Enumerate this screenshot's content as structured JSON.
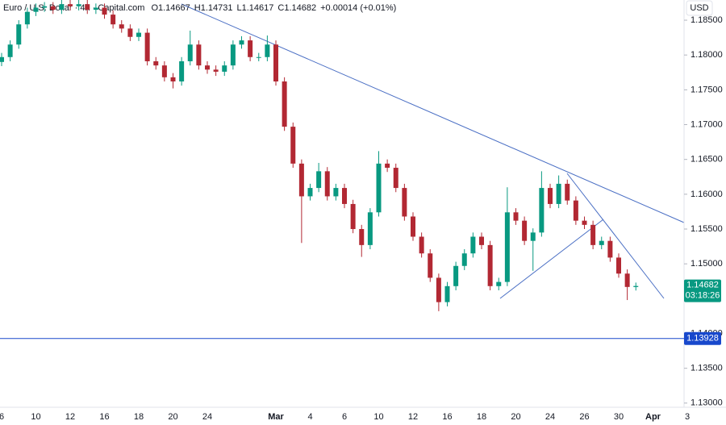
{
  "chart_data": {
    "type": "candlestick",
    "symbol": "Euro / U.S. Dollar · 4h · Capital.com",
    "readout": [
      "O1.14667",
      "H1.14731",
      "L1.14617",
      "C1.14682",
      "+0.00014 (+0.01%)"
    ],
    "currency": "USD",
    "categories": [
      "6",
      null,
      null,
      null,
      "10",
      null,
      null,
      null,
      "12",
      null,
      null,
      null,
      "16",
      null,
      null,
      null,
      "18",
      null,
      null,
      null,
      "20",
      null,
      null,
      null,
      "24",
      null,
      null,
      null,
      null,
      null,
      null,
      null,
      "Mar",
      null,
      null,
      null,
      "4",
      null,
      null,
      null,
      "6",
      null,
      null,
      null,
      "10",
      null,
      null,
      null,
      "12",
      null,
      null,
      null,
      "16",
      null,
      null,
      null,
      "18",
      null,
      null,
      null,
      "20",
      null,
      null,
      null,
      "24",
      null,
      null,
      null,
      "26",
      null,
      null,
      null,
      "30",
      null,
      null,
      null,
      "Apr",
      null,
      null,
      null,
      "3"
    ],
    "open": [
      1.179,
      1.1797,
      1.1815,
      1.1844,
      1.1862,
      1.1868,
      1.187,
      1.1865,
      1.1873,
      1.187,
      1.1873,
      1.1865,
      1.1868,
      1.1858,
      1.1844,
      1.1838,
      1.1826,
      1.1832,
      1.1791,
      1.1785,
      1.1768,
      1.1762,
      1.1791,
      1.1815,
      1.1785,
      1.1779,
      1.1776,
      1.1785,
      1.1815,
      1.1821,
      1.1797,
      1.1797,
      1.1815,
      1.1762,
      1.1697,
      1.1644,
      1.1597,
      1.1609,
      1.1633,
      1.1597,
      1.1609,
      1.1586,
      1.155,
      1.1527,
      1.1574,
      1.1644,
      1.1638,
      1.1609,
      1.1568,
      1.1539,
      1.1515,
      1.148,
      1.1445,
      1.1468,
      1.1497,
      1.1515,
      1.1539,
      1.1527,
      1.1468,
      1.1474,
      1.1574,
      1.1562,
      1.1533,
      1.1545,
      1.1609,
      1.1586,
      1.1615,
      1.1591,
      1.1562,
      1.1556,
      1.1527,
      1.1533,
      1.1509,
      1.1486,
      1.14667,
      null,
      null,
      null,
      null,
      null,
      null
    ],
    "high": [
      1.1803,
      1.1821,
      1.185,
      1.1868,
      1.1874,
      1.1876,
      1.1876,
      1.1879,
      1.1879,
      1.1879,
      1.1879,
      1.1874,
      1.1874,
      1.1864,
      1.185,
      1.1844,
      1.1838,
      1.1838,
      1.1797,
      1.1791,
      1.1774,
      1.1797,
      1.1835,
      1.1821,
      1.1791,
      1.1785,
      1.1791,
      1.1821,
      1.1827,
      1.1827,
      1.1803,
      1.1828,
      1.1821,
      1.1768,
      1.1703,
      1.165,
      1.1615,
      1.1645,
      1.1639,
      1.1615,
      1.1615,
      1.1592,
      1.1556,
      1.158,
      1.1662,
      1.165,
      1.1644,
      1.1615,
      1.1574,
      1.1545,
      1.1521,
      1.1486,
      1.1474,
      1.1503,
      1.1521,
      1.1545,
      1.1545,
      1.1533,
      1.148,
      1.161,
      1.158,
      1.1568,
      1.1551,
      1.1633,
      1.1615,
      1.1627,
      1.1621,
      1.1597,
      1.1568,
      1.1562,
      1.1539,
      1.1539,
      1.1515,
      1.1492,
      1.14731,
      null,
      null,
      null,
      null,
      null,
      null
    ],
    "low": [
      1.1784,
      1.1791,
      1.1809,
      1.1838,
      1.1856,
      1.1862,
      1.1859,
      1.1859,
      1.1864,
      1.1864,
      1.1859,
      1.1859,
      1.1852,
      1.1838,
      1.1832,
      1.182,
      1.182,
      1.1785,
      1.1779,
      1.1762,
      1.1752,
      1.1756,
      1.1785,
      1.1779,
      1.1773,
      1.177,
      1.177,
      1.1779,
      1.1809,
      1.1791,
      1.1791,
      1.1791,
      1.1756,
      1.1691,
      1.1638,
      1.153,
      1.1591,
      1.1603,
      1.1591,
      1.1591,
      1.158,
      1.1544,
      1.151,
      1.1521,
      1.1568,
      1.1632,
      1.1603,
      1.1562,
      1.1533,
      1.1509,
      1.1474,
      1.1432,
      1.1439,
      1.1462,
      1.1491,
      1.1509,
      1.1521,
      1.1462,
      1.1462,
      1.1468,
      1.1556,
      1.1527,
      1.149,
      1.1539,
      1.158,
      1.158,
      1.1585,
      1.1556,
      1.155,
      1.1521,
      1.1521,
      1.1503,
      1.148,
      1.1448,
      1.14617,
      null,
      null,
      null,
      null,
      null,
      null
    ],
    "close": [
      1.1797,
      1.1815,
      1.1844,
      1.1862,
      1.1868,
      1.187,
      1.1865,
      1.1873,
      1.187,
      1.1873,
      1.1865,
      1.1868,
      1.1858,
      1.1844,
      1.1838,
      1.1826,
      1.1832,
      1.1791,
      1.1785,
      1.1768,
      1.1762,
      1.1791,
      1.1815,
      1.1785,
      1.1779,
      1.1776,
      1.1785,
      1.1815,
      1.1821,
      1.1797,
      1.1797,
      1.1815,
      1.1762,
      1.1697,
      1.1644,
      1.1597,
      1.1609,
      1.1633,
      1.1597,
      1.1609,
      1.1586,
      1.155,
      1.1527,
      1.1574,
      1.1644,
      1.1638,
      1.1609,
      1.1568,
      1.1539,
      1.1515,
      1.148,
      1.1445,
      1.1468,
      1.1497,
      1.1515,
      1.1539,
      1.1527,
      1.1468,
      1.1474,
      1.1574,
      1.1562,
      1.1533,
      1.1545,
      1.1609,
      1.1586,
      1.1615,
      1.1591,
      1.1562,
      1.1556,
      1.1527,
      1.1533,
      1.1509,
      1.1486,
      1.14668,
      1.14682,
      null,
      null,
      null,
      null,
      null,
      null
    ],
    "up_color": "#089981",
    "down_color": "#b22833",
    "ylim": [
      1.1294,
      1.1879
    ],
    "yticks": [
      {
        "value": 1.13,
        "label": "1.13000"
      },
      {
        "value": 1.135,
        "label": "1.13500"
      },
      {
        "value": 1.14,
        "label": "1.14000"
      },
      {
        "value": 1.15,
        "label": "1.15000"
      },
      {
        "value": 1.155,
        "label": "1.15500"
      },
      {
        "value": 1.16,
        "label": "1.16000"
      },
      {
        "value": 1.165,
        "label": "1.16500"
      },
      {
        "value": 1.17,
        "label": "1.17000"
      },
      {
        "value": 1.175,
        "label": "1.17500"
      },
      {
        "value": 1.18,
        "label": "1.18000"
      },
      {
        "value": 1.185,
        "label": "1.18500"
      }
    ],
    "last_price": 1.14682,
    "countdown": "03:18:26",
    "last_color": "#089981",
    "support_level": 1.13928,
    "support_color": "#1848cc",
    "grid": false
  }
}
